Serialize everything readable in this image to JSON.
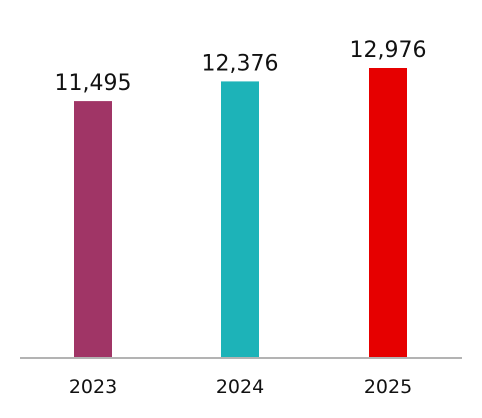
{
  "chart_data": {
    "type": "bar",
    "categories": [
      "2023",
      "2024",
      "2025"
    ],
    "values": [
      11495,
      12376,
      12976
    ],
    "value_labels": [
      "11,495",
      "12,376",
      "12,976"
    ],
    "colors": [
      "#a03566",
      "#1db3b8",
      "#e60000"
    ],
    "axis_color": "#b3b3b3",
    "title": "",
    "xlabel": "",
    "ylabel": "",
    "ylim": [
      0,
      14500
    ],
    "grid": false,
    "legend": "none"
  }
}
